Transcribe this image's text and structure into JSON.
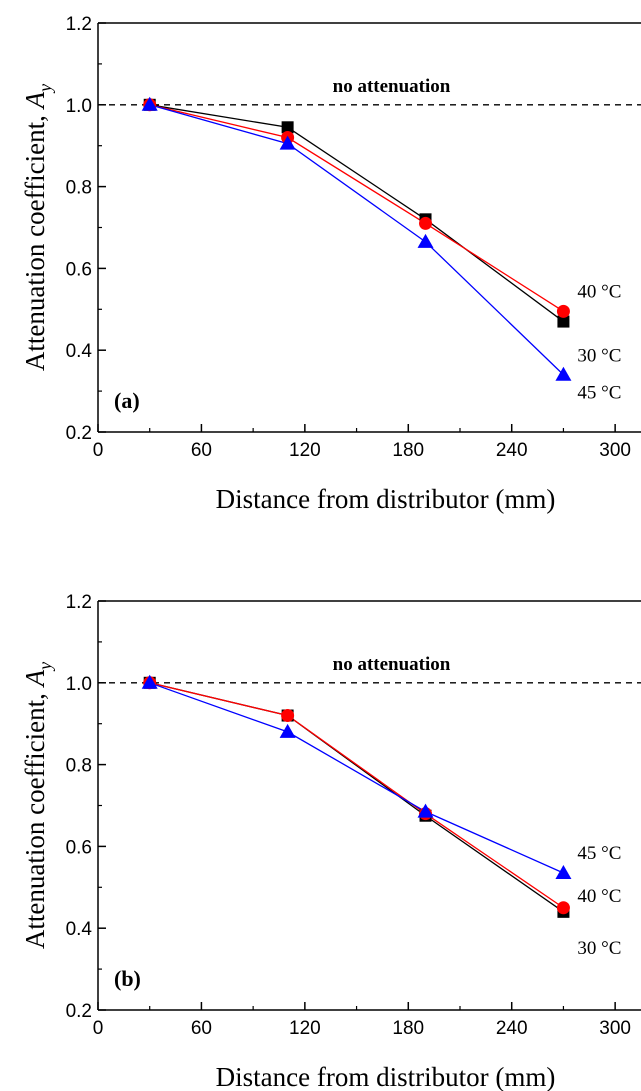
{
  "chart_data": [
    {
      "type": "line",
      "panel_label": "(a)",
      "xlabel": "Distance from distributor (mm)",
      "ylabel_main": "Attenuation coefficient, ",
      "ylabel_var": "A",
      "ylabel_sub": "y",
      "xlim": [
        0,
        315
      ],
      "ylim": [
        0.2,
        1.2
      ],
      "xticks": [
        0,
        60,
        120,
        180,
        240,
        300
      ],
      "yticks": [
        0.2,
        0.4,
        0.6,
        0.8,
        1.0,
        1.2
      ],
      "xtick_labels": [
        "0",
        "60",
        "120",
        "180",
        "240",
        "300"
      ],
      "ytick_labels": [
        "0.2",
        "0.4",
        "0.6",
        "0.8",
        "1.0",
        "1.2"
      ],
      "reference_line": {
        "y": 1.0,
        "label": "no attenuation",
        "style": "dashed"
      },
      "x": [
        30,
        110,
        190,
        270
      ],
      "series": [
        {
          "name": "30 °C",
          "marker": "square",
          "color": "#000000",
          "values": [
            1.0,
            0.945,
            0.72,
            0.47
          ]
        },
        {
          "name": "40 °C",
          "marker": "circle",
          "color": "#ff0000",
          "values": [
            1.0,
            0.92,
            0.71,
            0.495
          ]
        },
        {
          "name": "45 °C",
          "marker": "triangle",
          "color": "#0000ff",
          "values": [
            1.0,
            0.905,
            0.665,
            0.34
          ]
        }
      ]
    },
    {
      "type": "line",
      "panel_label": "(b)",
      "xlabel": "Distance from distributor (mm)",
      "ylabel_main": "Attenuation coefficient, ",
      "ylabel_var": "A",
      "ylabel_sub": "y",
      "xlim": [
        0,
        315
      ],
      "ylim": [
        0.2,
        1.2
      ],
      "xticks": [
        0,
        60,
        120,
        180,
        240,
        300
      ],
      "yticks": [
        0.2,
        0.4,
        0.6,
        0.8,
        1.0,
        1.2
      ],
      "xtick_labels": [
        "0",
        "60",
        "120",
        "180",
        "240",
        "300"
      ],
      "ytick_labels": [
        "0.2",
        "0.4",
        "0.6",
        "0.8",
        "1.0",
        "1.2"
      ],
      "reference_line": {
        "y": 1.0,
        "label": "no attenuation",
        "style": "dashed"
      },
      "x": [
        30,
        110,
        190,
        270
      ],
      "series": [
        {
          "name": "30 °C",
          "marker": "square",
          "color": "#000000",
          "values": [
            1.0,
            0.92,
            0.675,
            0.44
          ]
        },
        {
          "name": "40 °C",
          "marker": "circle",
          "color": "#ff0000",
          "values": [
            1.0,
            0.92,
            0.68,
            0.45
          ]
        },
        {
          "name": "45 °C",
          "marker": "triangle",
          "color": "#0000ff",
          "values": [
            1.0,
            0.88,
            0.685,
            0.535
          ]
        }
      ]
    }
  ]
}
